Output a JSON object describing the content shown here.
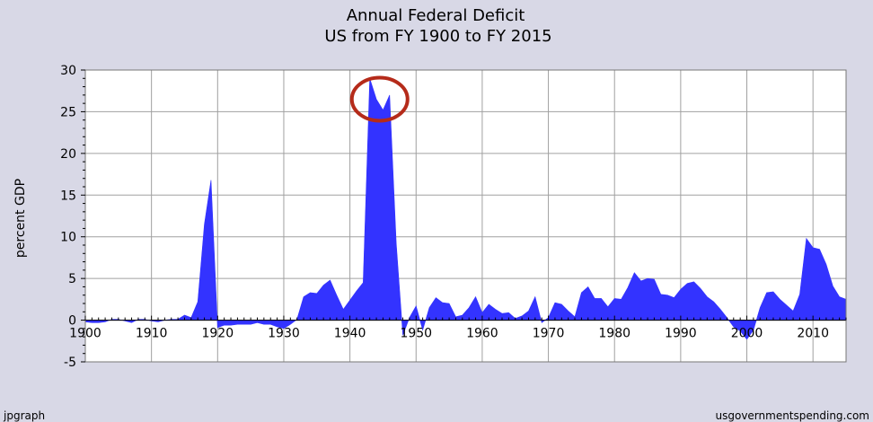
{
  "chart_data": {
    "type": "area",
    "title": "Annual Federal Deficit",
    "subtitle": "US from FY 1900 to FY 2015",
    "xlabel": "",
    "ylabel": "percent GDP",
    "xlim": [
      1900,
      2015
    ],
    "ylim": [
      -5,
      30
    ],
    "x_ticks": [
      1900,
      1910,
      1920,
      1930,
      1940,
      1950,
      1960,
      1970,
      1980,
      1990,
      2000,
      2010
    ],
    "y_ticks": [
      -5,
      0,
      5,
      10,
      15,
      20,
      25,
      30
    ],
    "grid": true,
    "series": [
      {
        "color": "#3333ff",
        "x": [
          1900,
          1901,
          1902,
          1903,
          1904,
          1905,
          1906,
          1907,
          1908,
          1909,
          1910,
          1911,
          1912,
          1913,
          1914,
          1915,
          1916,
          1917,
          1918,
          1919,
          1920,
          1921,
          1922,
          1923,
          1924,
          1925,
          1926,
          1927,
          1928,
          1929,
          1930,
          1931,
          1932,
          1933,
          1934,
          1935,
          1936,
          1937,
          1938,
          1939,
          1940,
          1941,
          1942,
          1943,
          1944,
          1945,
          1946,
          1947,
          1948,
          1949,
          1950,
          1951,
          1952,
          1953,
          1954,
          1955,
          1956,
          1957,
          1958,
          1959,
          1960,
          1961,
          1962,
          1963,
          1964,
          1965,
          1966,
          1967,
          1968,
          1969,
          1970,
          1971,
          1972,
          1973,
          1974,
          1975,
          1976,
          1977,
          1978,
          1979,
          1980,
          1981,
          1982,
          1983,
          1984,
          1985,
          1986,
          1987,
          1988,
          1989,
          1990,
          1991,
          1992,
          1993,
          1994,
          1995,
          1996,
          1997,
          1998,
          1999,
          2000,
          2001,
          2002,
          2003,
          2004,
          2005,
          2006,
          2007,
          2008,
          2009,
          2010,
          2011,
          2012,
          2013,
          2014,
          2015
        ],
        "values": [
          -0.2,
          -0.3,
          -0.3,
          -0.2,
          0.1,
          0.1,
          -0.1,
          -0.3,
          0.1,
          0.1,
          -0.1,
          -0.2,
          0.0,
          0.1,
          0.1,
          0.6,
          0.3,
          2.2,
          11.5,
          16.8,
          -0.9,
          -0.6,
          -0.6,
          -0.5,
          -0.5,
          -0.5,
          -0.3,
          -0.5,
          -0.5,
          -0.8,
          -1.0,
          -0.5,
          0.1,
          2.8,
          3.3,
          3.2,
          4.2,
          4.8,
          3.0,
          1.3,
          2.4,
          3.5,
          4.5,
          29.0,
          26.5,
          25.2,
          27.0,
          9.2,
          -1.8,
          0.3,
          1.7,
          -1.2,
          1.5,
          2.7,
          2.1,
          2.0,
          0.4,
          0.6,
          1.5,
          2.8,
          0.9,
          1.9,
          1.3,
          0.8,
          0.9,
          0.2,
          0.5,
          1.1,
          2.8,
          -0.3,
          0.3,
          2.1,
          1.9,
          1.1,
          0.4,
          3.3,
          4.0,
          2.6,
          2.6,
          1.6,
          2.6,
          2.5,
          3.9,
          5.7,
          4.7,
          5.0,
          4.9,
          3.1,
          3.0,
          2.7,
          3.7,
          4.4,
          4.6,
          3.8,
          2.8,
          2.2,
          1.3,
          0.3,
          -0.8,
          -1.3,
          -2.3,
          -1.2,
          1.5,
          3.3,
          3.4,
          2.5,
          1.8,
          1.1,
          3.1,
          9.8,
          8.7,
          8.5,
          6.7,
          4.1,
          2.8,
          2.5
        ]
      }
    ],
    "annotations": [
      {
        "type": "circle",
        "x": 1944.5,
        "y": 26.5,
        "color": "#b52b1a"
      }
    ]
  },
  "footer": {
    "left": "jpgraph",
    "right": "usgovernmentspending.com"
  }
}
